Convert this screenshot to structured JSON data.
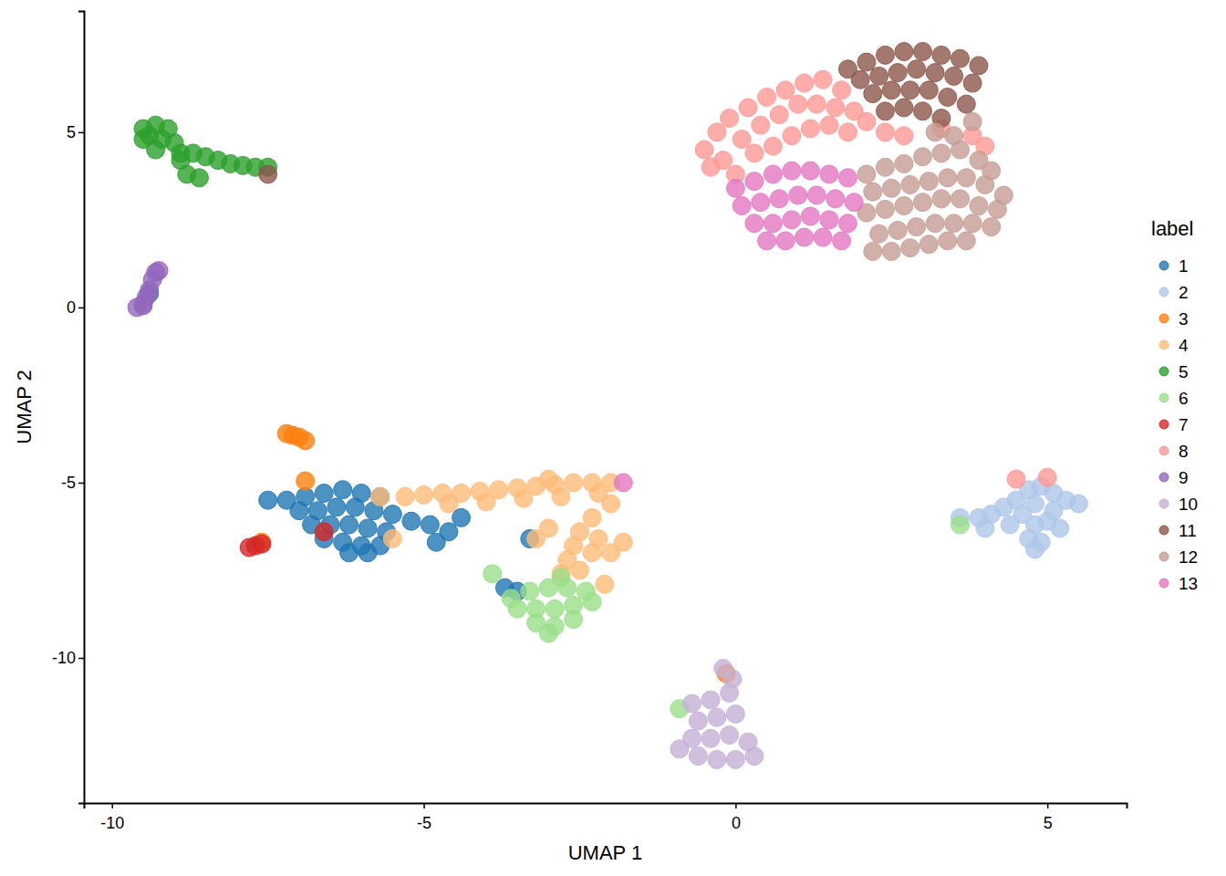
{
  "chart_data": {
    "type": "scatter",
    "x_label": "UMAP 1",
    "y_label": "UMAP 2",
    "legend_title": "label",
    "legend": "right",
    "grid": false,
    "xlim": [
      -10.45,
      6.27
    ],
    "ylim": [
      -14.14,
      8.46
    ],
    "xticks": [
      -10,
      -5,
      0,
      5
    ],
    "yticks": [
      -10,
      -5,
      0,
      5
    ],
    "series": [
      {
        "name": "1",
        "color": "#1f77b4",
        "x": [
          -7.5,
          -7.2,
          -6.9,
          -6.6,
          -6.3,
          -6.0,
          -5.7,
          -7.0,
          -6.7,
          -6.4,
          -6.1,
          -5.8,
          -5.5,
          -6.8,
          -6.5,
          -6.2,
          -5.9,
          -5.6,
          -6.6,
          -6.3,
          -6.0,
          -5.7,
          -6.2,
          -5.9,
          -5.2,
          -4.9,
          -4.6,
          -4.4,
          -3.7,
          -3.5,
          -3.3,
          -4.8,
          -9.4
        ],
        "values": [
          -5.5,
          -5.5,
          -5.4,
          -5.3,
          -5.2,
          -5.3,
          -5.4,
          -5.8,
          -5.8,
          -5.7,
          -5.7,
          -5.8,
          -5.9,
          -6.2,
          -6.2,
          -6.2,
          -6.3,
          -6.4,
          -6.6,
          -6.7,
          -6.8,
          -6.8,
          -7.0,
          -7.0,
          -6.1,
          -6.2,
          -6.4,
          -6.0,
          -8.0,
          -8.1,
          -6.6,
          -6.7,
          0.4
        ]
      },
      {
        "name": "2",
        "color": "#aec7e8",
        "x": [
          3.6,
          3.9,
          4.1,
          4.3,
          4.5,
          4.7,
          4.9,
          5.1,
          5.3,
          5.5,
          4.8,
          5.1,
          4.6,
          4.4,
          4.0,
          4.8,
          5.0,
          4.7,
          4.9,
          5.2,
          4.8
        ],
        "values": [
          -6.0,
          -6.0,
          -5.9,
          -5.7,
          -5.5,
          -5.2,
          -5.1,
          -5.3,
          -5.5,
          -5.6,
          -5.6,
          -5.8,
          -5.9,
          -6.2,
          -6.3,
          -6.2,
          -6.1,
          -6.6,
          -6.7,
          -6.3,
          -6.9
        ]
      },
      {
        "name": "3",
        "color": "#ff7f0e",
        "x": [
          -7.2,
          -7.1,
          -7.0,
          -6.9,
          -6.9,
          -7.6,
          -0.15
        ],
        "values": [
          -3.6,
          -3.65,
          -3.7,
          -3.8,
          -4.95,
          -6.7,
          -10.45
        ]
      },
      {
        "name": "4",
        "color": "#ffbb78",
        "x": [
          -5.7,
          -5.3,
          -5.0,
          -4.7,
          -4.4,
          -4.1,
          -3.8,
          -3.5,
          -3.2,
          -2.9,
          -2.6,
          -2.3,
          -2.0,
          -4.6,
          -4.0,
          -3.4,
          -2.8,
          -2.2,
          -2.0,
          -2.3,
          -2.5,
          -2.6,
          -2.7,
          -2.8,
          -2.5,
          -2.3,
          -2.2,
          -3.0,
          -3.2,
          -2.1,
          -2.0,
          -5.5,
          -3.0,
          -1.8
        ],
        "values": [
          -5.4,
          -5.4,
          -5.35,
          -5.3,
          -5.3,
          -5.25,
          -5.2,
          -5.15,
          -5.1,
          -5.05,
          -5.0,
          -5.0,
          -5.0,
          -5.6,
          -5.55,
          -5.45,
          -5.4,
          -5.3,
          -5.6,
          -6.0,
          -6.4,
          -6.8,
          -7.2,
          -7.6,
          -7.5,
          -7.0,
          -6.6,
          -6.3,
          -6.6,
          -7.9,
          -7.0,
          -6.6,
          -4.9,
          -6.7
        ]
      },
      {
        "name": "5",
        "color": "#2ca02c",
        "x": [
          -9.5,
          -9.3,
          -9.1,
          -9.5,
          -9.2,
          -9.0,
          -9.3,
          -8.9,
          -8.7,
          -8.5,
          -8.3,
          -8.1,
          -7.9,
          -7.7,
          -7.5,
          -8.8,
          -8.6,
          -9.4,
          -8.9
        ],
        "values": [
          5.1,
          5.2,
          5.1,
          4.8,
          4.8,
          4.7,
          4.5,
          4.4,
          4.4,
          4.3,
          4.2,
          4.1,
          4.05,
          4.0,
          4.0,
          3.8,
          3.7,
          4.9,
          4.2
        ]
      },
      {
        "name": "6",
        "color": "#98df8a",
        "x": [
          -3.6,
          -3.3,
          -3.0,
          -2.7,
          -2.4,
          -3.5,
          -3.2,
          -2.9,
          -2.6,
          -2.3,
          -3.2,
          -2.9,
          -2.6,
          -3.0,
          -2.8,
          -3.9,
          -0.9,
          3.6
        ],
        "values": [
          -8.3,
          -8.1,
          -8.0,
          -8.0,
          -8.1,
          -8.6,
          -8.6,
          -8.6,
          -8.5,
          -8.4,
          -9.0,
          -9.1,
          -8.9,
          -9.3,
          -7.7,
          -7.6,
          -11.45,
          -6.2
        ]
      },
      {
        "name": "7",
        "color": "#d62728",
        "x": [
          -7.8,
          -7.7,
          -7.6,
          -6.6
        ],
        "values": [
          -6.85,
          -6.8,
          -6.75,
          -6.4
        ]
      },
      {
        "name": "8",
        "color": "#ff9896",
        "x": [
          -0.5,
          -0.4,
          -0.3,
          -0.1,
          0.2,
          0.5,
          0.8,
          1.1,
          1.4,
          1.7,
          0.1,
          0.4,
          0.7,
          1.0,
          1.3,
          1.6,
          1.9,
          0.3,
          0.6,
          0.9,
          1.2,
          1.5,
          1.8,
          2.1,
          -0.2,
          0.0,
          2.4,
          2.7,
          3.3,
          3.8,
          4.0,
          4.5,
          5.0
        ],
        "values": [
          4.5,
          4.0,
          5.0,
          5.4,
          5.7,
          6.0,
          6.2,
          6.4,
          6.5,
          6.2,
          4.8,
          5.2,
          5.5,
          5.8,
          5.8,
          5.7,
          5.6,
          4.4,
          4.6,
          4.9,
          5.1,
          5.2,
          5.0,
          5.3,
          4.2,
          3.8,
          5.0,
          4.9,
          5.1,
          4.9,
          4.6,
          -4.9,
          -4.85
        ]
      },
      {
        "name": "9",
        "color": "#9467bd",
        "x": [
          -9.6,
          -9.5,
          -9.45,
          -9.4,
          -9.35,
          -9.3,
          -9.25,
          -9.5
        ],
        "values": [
          0.0,
          0.05,
          0.3,
          0.5,
          0.8,
          1.0,
          1.05,
          0.1
        ]
      },
      {
        "name": "10",
        "color": "#c5b0d5",
        "x": [
          -0.7,
          -0.4,
          -0.1,
          -0.05,
          -0.6,
          -0.3,
          0.0,
          -0.7,
          -0.4,
          -0.1,
          0.2,
          -0.6,
          -0.3,
          0.0,
          0.3,
          -0.2,
          -0.9
        ],
        "values": [
          -11.3,
          -11.2,
          -11.0,
          -10.6,
          -11.8,
          -11.7,
          -11.6,
          -12.3,
          -12.3,
          -12.2,
          -12.4,
          -12.8,
          -12.9,
          -12.9,
          -12.8,
          -10.3,
          -12.6
        ]
      },
      {
        "name": "11",
        "color": "#8c564b",
        "x": [
          1.8,
          2.1,
          2.4,
          2.7,
          3.0,
          3.3,
          3.6,
          3.9,
          2.0,
          2.3,
          2.6,
          2.9,
          3.2,
          3.5,
          3.8,
          2.2,
          2.5,
          2.8,
          3.1,
          3.4,
          3.7,
          2.7,
          3.0,
          3.3,
          2.4,
          -7.5
        ],
        "values": [
          6.8,
          7.0,
          7.2,
          7.3,
          7.3,
          7.2,
          7.1,
          6.9,
          6.5,
          6.6,
          6.7,
          6.8,
          6.7,
          6.6,
          6.4,
          6.1,
          6.2,
          6.2,
          6.2,
          6.0,
          5.8,
          5.7,
          5.6,
          5.4,
          5.6,
          3.8
        ]
      },
      {
        "name": "12",
        "color": "#c49c94",
        "x": [
          2.1,
          2.4,
          2.7,
          3.0,
          3.3,
          3.6,
          3.9,
          4.1,
          2.2,
          2.5,
          2.8,
          3.1,
          3.4,
          3.7,
          4.0,
          4.3,
          2.1,
          2.4,
          2.7,
          3.0,
          3.3,
          3.6,
          3.9,
          4.2,
          2.3,
          2.6,
          2.9,
          3.2,
          3.5,
          3.8,
          4.1,
          2.2,
          2.5,
          2.8,
          3.1,
          3.4,
          3.7,
          3.5,
          3.8,
          3.2
        ],
        "values": [
          3.8,
          4.0,
          4.1,
          4.3,
          4.4,
          4.5,
          4.2,
          3.9,
          3.3,
          3.4,
          3.5,
          3.6,
          3.7,
          3.7,
          3.5,
          3.2,
          2.7,
          2.8,
          2.9,
          3.0,
          3.1,
          3.1,
          2.9,
          2.8,
          2.1,
          2.2,
          2.3,
          2.4,
          2.4,
          2.4,
          2.3,
          1.6,
          1.6,
          1.7,
          1.8,
          1.9,
          1.9,
          4.9,
          5.3,
          5.0
        ]
      },
      {
        "name": "13",
        "color": "#e377c2",
        "x": [
          0.0,
          0.3,
          0.6,
          0.9,
          1.2,
          1.5,
          1.8,
          0.1,
          0.4,
          0.7,
          1.0,
          1.3,
          1.6,
          1.9,
          0.3,
          0.6,
          0.9,
          1.2,
          1.5,
          1.8,
          0.5,
          0.8,
          1.1,
          1.4,
          1.7,
          -1.8
        ],
        "values": [
          3.4,
          3.6,
          3.8,
          3.9,
          3.9,
          3.8,
          3.7,
          2.9,
          3.0,
          3.1,
          3.2,
          3.2,
          3.1,
          3.0,
          2.4,
          2.4,
          2.5,
          2.6,
          2.5,
          2.4,
          1.9,
          1.9,
          2.0,
          2.0,
          1.9,
          -5.0
        ]
      }
    ]
  }
}
